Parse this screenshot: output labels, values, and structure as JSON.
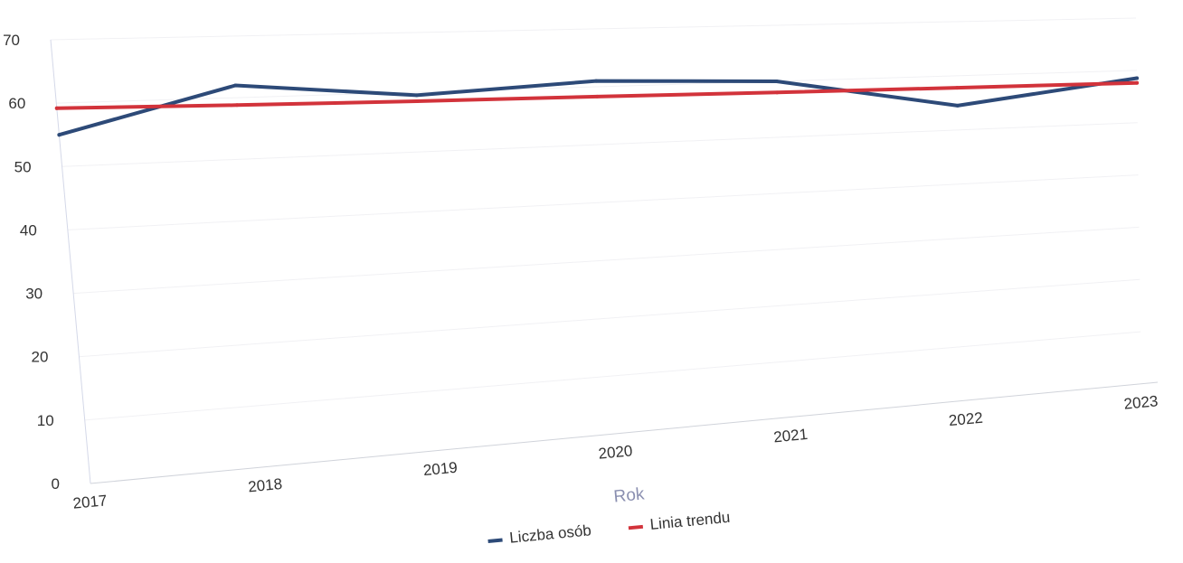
{
  "chart_data": {
    "type": "line",
    "title": "",
    "xlabel": "Rok",
    "ylabel": "",
    "x": [
      "2017",
      "2018",
      "2019",
      "2020",
      "2021",
      "2022",
      "2023"
    ],
    "y_ticks": [
      "0",
      "10",
      "20",
      "30",
      "40",
      "50",
      "60",
      "70"
    ],
    "ylim": [
      0,
      70
    ],
    "grid": true,
    "legend_position": "bottom",
    "series": [
      {
        "name": "Liczba osób",
        "color": "#2d4a78",
        "values": [
          55,
          62,
          59.5,
          61,
          60,
          54.5,
          58.5
        ]
      },
      {
        "name": "Linia trendu",
        "color": "#d2333b",
        "values": [
          59.2,
          58.8,
          58.5,
          58.3,
          58.0,
          57.8,
          57.6
        ]
      }
    ]
  }
}
